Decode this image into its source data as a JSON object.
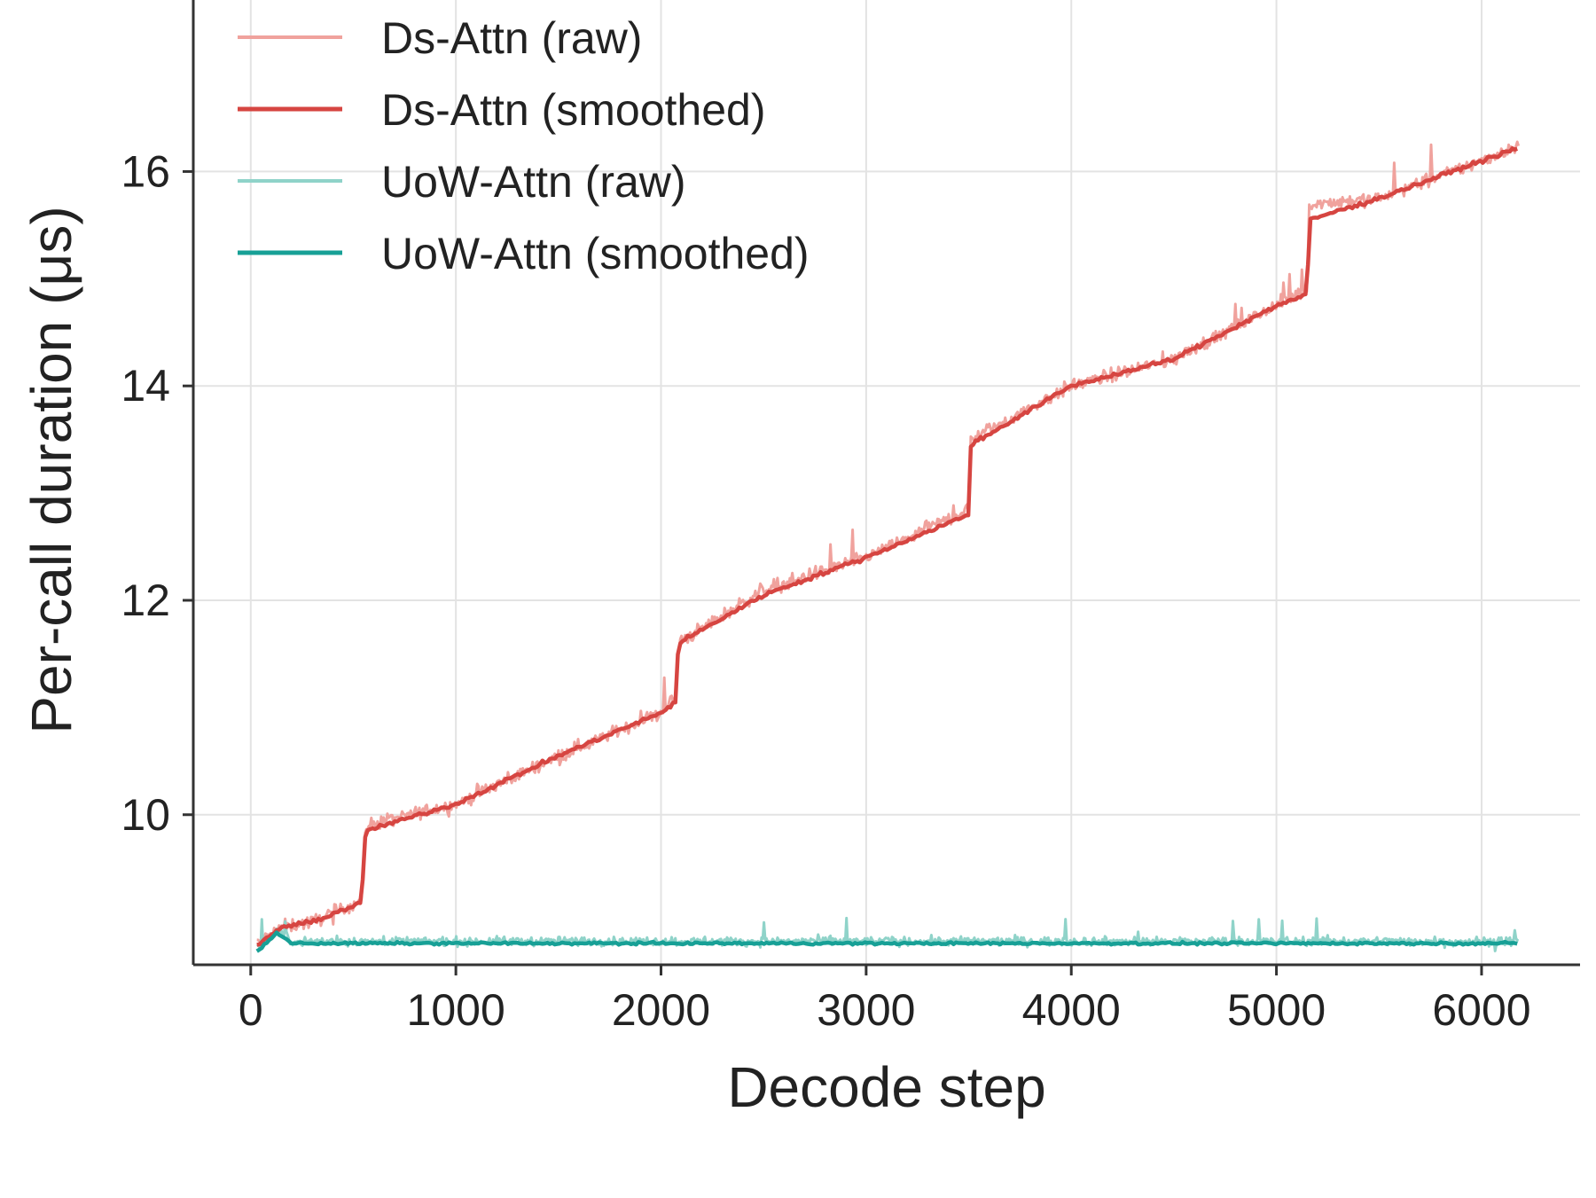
{
  "chart_data": {
    "type": "line",
    "title": "",
    "xlabel": "Decode step",
    "ylabel": "Per-call duration (μs)",
    "xlim": [
      -280,
      6480
    ],
    "ylim": [
      8.6,
      17.6
    ],
    "xticks": [
      0,
      1000,
      2000,
      3000,
      4000,
      5000,
      6000
    ],
    "yticks": [
      10,
      12,
      14,
      16
    ],
    "grid": true,
    "legend": "top-left",
    "series": [
      {
        "name": "Ds-Attn (raw)",
        "color": "#f0a29d",
        "style": "raw",
        "points": [
          [
            30,
            8.8
          ],
          [
            150,
            8.95
          ],
          [
            300,
            9.0
          ],
          [
            540,
            9.2
          ],
          [
            560,
            9.9
          ],
          [
            1000,
            10.1
          ],
          [
            1500,
            10.55
          ],
          [
            2000,
            10.95
          ],
          [
            2070,
            11.1
          ],
          [
            2085,
            11.6
          ],
          [
            2500,
            12.1
          ],
          [
            3000,
            12.4
          ],
          [
            3500,
            12.85
          ],
          [
            3510,
            13.5
          ],
          [
            4000,
            14.0
          ],
          [
            4500,
            14.25
          ],
          [
            5000,
            14.75
          ],
          [
            5150,
            14.9
          ],
          [
            5160,
            15.7
          ],
          [
            5500,
            15.75
          ],
          [
            6000,
            16.1
          ],
          [
            6180,
            16.25
          ]
        ]
      },
      {
        "name": "Ds-Attn (smoothed)",
        "color": "#d64541",
        "style": "smoothed",
        "points": [
          [
            30,
            8.78
          ],
          [
            150,
            8.95
          ],
          [
            300,
            9.0
          ],
          [
            540,
            9.18
          ],
          [
            560,
            9.85
          ],
          [
            1000,
            10.1
          ],
          [
            1500,
            10.55
          ],
          [
            2000,
            10.95
          ],
          [
            2070,
            11.05
          ],
          [
            2085,
            11.6
          ],
          [
            2500,
            12.05
          ],
          [
            3000,
            12.4
          ],
          [
            3500,
            12.8
          ],
          [
            3510,
            13.45
          ],
          [
            4000,
            14.0
          ],
          [
            4500,
            14.25
          ],
          [
            5000,
            14.75
          ],
          [
            5150,
            14.85
          ],
          [
            5160,
            15.55
          ],
          [
            5500,
            15.75
          ],
          [
            6000,
            16.1
          ],
          [
            6180,
            16.22
          ]
        ]
      },
      {
        "name": "UoW-Attn (raw)",
        "color": "#8fd3c9",
        "style": "raw",
        "points": [
          [
            30,
            8.75
          ],
          [
            130,
            8.92
          ],
          [
            200,
            8.82
          ],
          [
            6180,
            8.82
          ]
        ]
      },
      {
        "name": "UoW-Attn (smoothed)",
        "color": "#17a096",
        "style": "smoothed",
        "points": [
          [
            30,
            8.72
          ],
          [
            130,
            8.9
          ],
          [
            200,
            8.8
          ],
          [
            6180,
            8.8
          ]
        ]
      }
    ]
  }
}
